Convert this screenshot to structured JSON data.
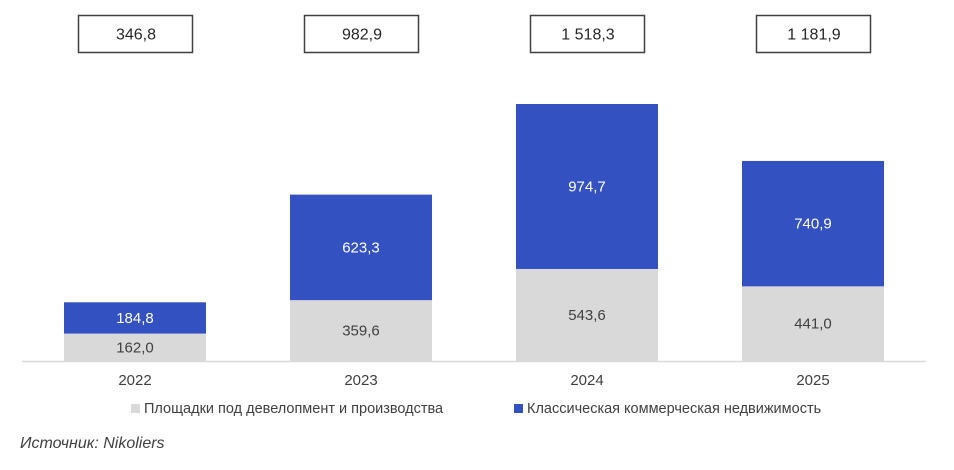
{
  "chart_data": {
    "type": "bar",
    "stacked": true,
    "categories": [
      "2022",
      "2023",
      "2024",
      "2025"
    ],
    "series": [
      {
        "name": "Площадки под девелопмент и производства",
        "color": "#d9d9d9",
        "label_color": "#404040",
        "values": [
          162.0,
          359.6,
          543.6,
          441.0
        ],
        "labels": [
          "162,0",
          "359,6",
          "543,6",
          "441,0"
        ]
      },
      {
        "name": "Классическая коммерческая недвижимость",
        "color": "#3351c1",
        "label_color": "#ffffff",
        "values": [
          184.8,
          623.3,
          974.7,
          740.9
        ],
        "labels": [
          "184,8",
          "623,3",
          "974,7",
          "740,9"
        ]
      }
    ],
    "totals": [
      346.8,
      982.9,
      1518.3,
      1181.9
    ],
    "total_labels": [
      "346,8",
      "982,9",
      "1 518,3",
      "1 181,9"
    ],
    "ylim": [
      0,
      1518.3
    ],
    "grid": false,
    "legend_position": "bottom"
  },
  "source": "Источник: Nikoliers"
}
